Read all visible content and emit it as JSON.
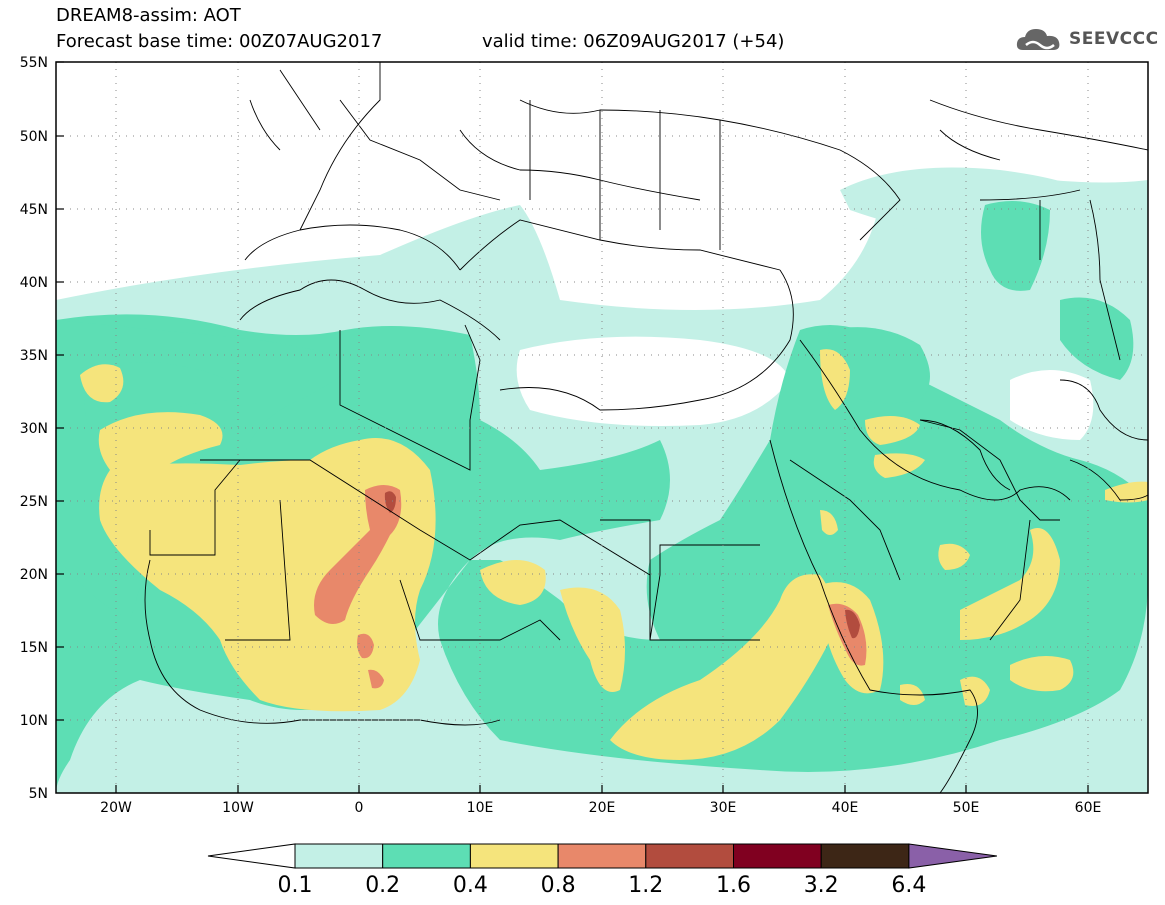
{
  "header": {
    "line1": "DREAM8-assim: AOT",
    "line2": "Forecast base time: 00Z07AUG2017",
    "valid": "valid time: 06Z09AUG2017 (+54)",
    "logo_text": "SEEVCCC",
    "logo_icon": "cloud-icon"
  },
  "axes": {
    "lat_labels": [
      "55N",
      "50N",
      "45N",
      "40N",
      "35N",
      "30N",
      "25N",
      "20N",
      "15N",
      "10N",
      "5N"
    ],
    "lon_labels": [
      "20W",
      "10W",
      "0",
      "10E",
      "20E",
      "30E",
      "40E",
      "50E",
      "60E"
    ]
  },
  "colorbar": {
    "labels": [
      "0.1",
      "0.2",
      "0.4",
      "0.8",
      "1.2",
      "1.6",
      "3.2",
      "6.4"
    ],
    "colors": [
      "#ffffff",
      "#c3f0e6",
      "#5ddeb4",
      "#f5e47c",
      "#e8886a",
      "#b24c3e",
      "#800020",
      "#3d2616",
      "#8a60a8"
    ]
  }
}
